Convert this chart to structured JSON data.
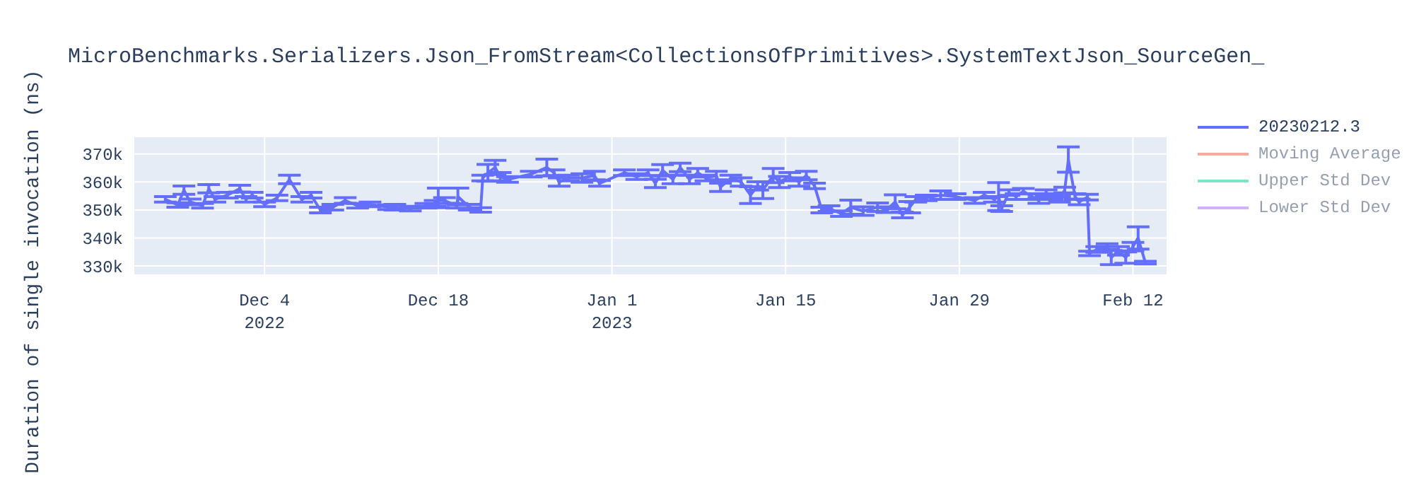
{
  "chart_data": {
    "type": "line",
    "title": "MicroBenchmarks.Serializers.Json_FromStream<CollectionsOfPrimitives>.SystemTextJson_SourceGen_",
    "ylabel": "Duration of single invocation (ns)",
    "x": [
      "2022-11-26",
      "2022-11-27",
      "2022-11-27T12:00",
      "2022-11-28",
      "2022-11-29",
      "2022-11-29T12:00",
      "2022-11-30",
      "2022-12-01",
      "2022-12-02",
      "2022-12-02T12:00",
      "2022-12-03",
      "2022-12-04",
      "2022-12-05",
      "2022-12-06",
      "2022-12-07",
      "2022-12-07T18:00",
      "2022-12-08T12:00",
      "2022-12-09T12:00",
      "2022-12-10T12:00",
      "2022-12-11T12:00",
      "2022-12-12T12:00",
      "2022-12-14",
      "2022-12-14T12:00",
      "2022-12-15T18:00",
      "2022-12-17",
      "2022-12-17T18:00",
      "2022-12-18",
      "2022-12-18T12:00",
      "2022-12-19T12:00",
      "2022-12-19T14:00",
      "2022-12-20T12:00",
      "2022-12-21T10:00",
      "2022-12-21T14:00",
      "2022-12-22",
      "2022-12-22T14:00",
      "2022-12-23",
      "2022-12-23T14:00",
      "2022-12-25T12:00",
      "2022-12-26T18:00",
      "2022-12-27T08:00",
      "2022-12-27T18:00",
      "2022-12-28T12:00",
      "2022-12-29T14:00",
      "2022-12-30T14:00",
      "2022-12-31",
      "2023-01-02",
      "2023-01-03",
      "2023-01-03T22:00",
      "2023-01-04T12:00",
      "2023-01-05T02:00",
      "2023-01-05T22:00",
      "2023-01-06T12:00",
      "2023-01-07T06:00",
      "2023-01-07T22:00",
      "2023-01-08T14:00",
      "2023-01-09T10:00",
      "2023-01-09T18:00",
      "2023-01-10T14:00",
      "2023-01-11T10:00",
      "2023-01-12T04:00",
      "2023-01-12T18:00",
      "2023-01-13T04:00",
      "2023-01-14",
      "2023-01-14T12:00",
      "2023-01-15T08:00",
      "2023-01-16T02:00",
      "2023-01-16T16:00",
      "2023-01-17T08:00",
      "2023-01-17T22:00",
      "2023-01-18T12:00",
      "2023-01-19T12:00",
      "2023-01-20T06:00",
      "2023-01-21T06:00",
      "2023-01-22T10:00",
      "2023-01-23T04:00",
      "2023-01-23T20:00",
      "2023-01-24T10:00",
      "2023-01-25",
      "2023-01-25T12:00",
      "2023-01-26T08:00",
      "2023-01-27T12:00",
      "2023-01-28T16:00",
      "2023-01-30T06:00",
      "2023-01-31",
      "2023-01-31T20:00",
      "2023-02-01T04:00",
      "2023-02-01T10:00",
      "2023-02-02",
      "2023-02-02T14:00",
      "2023-02-03T04:00",
      "2023-02-03T20:00",
      "2023-02-04T10:00",
      "2023-02-05",
      "2023-02-05T12:00",
      "2023-02-06T02:00",
      "2023-02-06T12:00",
      "2023-02-06T19:00",
      "2023-02-07T08:00",
      "2023-02-07T16:00",
      "2023-02-08T08:00",
      "2023-02-08T12:00",
      "2023-02-09T02:00",
      "2023-02-09T22:00",
      "2023-02-10T06:00",
      "2023-02-10T20:00",
      "2023-02-11T10:00",
      "2023-02-12",
      "2023-02-12T10:00",
      "2023-02-13"
    ],
    "series": [
      {
        "name": "20230212.3",
        "color": "#636efa",
        "values": [
          353800,
          351800,
          357100,
          352900,
          351500,
          357600,
          353800,
          355300,
          357600,
          353800,
          355300,
          352000,
          354300,
          360900,
          353800,
          355300,
          350000,
          351000,
          353400,
          351500,
          352000,
          351000,
          351000,
          350500,
          351500,
          352400,
          354300,
          353400,
          351500,
          354800,
          351000,
          350000,
          361400,
          363300,
          365200,
          361900,
          360900,
          362800,
          365200,
          363300,
          360000,
          361400,
          361400,
          362300,
          359500,
          363300,
          361900,
          363300,
          359500,
          364200,
          360900,
          365200,
          360900,
          363300,
          361400,
          362300,
          358100,
          361400,
          360000,
          355300,
          358600,
          357100,
          362300,
          360000,
          361900,
          360000,
          362300,
          358600,
          350000,
          350500,
          348700,
          351000,
          349600,
          351000,
          350100,
          352900,
          348200,
          351000,
          353800,
          354300,
          355300,
          354800,
          353400,
          355300,
          353800,
          354800,
          350500,
          356200,
          354800,
          356700,
          354800,
          353400,
          356200,
          354800,
          353800,
          357100,
          368000,
          354800,
          352900,
          354600,
          334500,
          335900,
          336900,
          333000,
          335400,
          333000,
          336900,
          340000,
          331200
        ],
        "errors": [
          1000,
          800,
          1500,
          1000,
          800,
          1500,
          1000,
          1000,
          1200,
          1000,
          1000,
          800,
          1000,
          1500,
          1000,
          1000,
          1000,
          1000,
          1000,
          800,
          800,
          800,
          1000,
          800,
          800,
          1000,
          3500,
          1000,
          800,
          3000,
          1000,
          800,
          1000,
          3000,
          2500,
          1500,
          1000,
          1000,
          3000,
          1000,
          1500,
          1000,
          1500,
          1500,
          1000,
          1000,
          1000,
          1000,
          1500,
          2000,
          1500,
          1500,
          1500,
          1500,
          1000,
          1500,
          1500,
          1000,
          1500,
          3000,
          1500,
          3000,
          2500,
          2000,
          1500,
          1500,
          1500,
          1000,
          1000,
          1000,
          1000,
          2500,
          1500,
          1500,
          1000,
          2500,
          1000,
          2000,
          1000,
          1000,
          1500,
          1000,
          1000,
          1000,
          1000,
          5000,
          1000,
          1000,
          1000,
          1000,
          1000,
          1000,
          1000,
          1000,
          1000,
          1000,
          4500,
          1000,
          1000,
          1000,
          800,
          1000,
          1000,
          2500,
          1500,
          2000,
          1500,
          4000,
          500
        ]
      },
      {
        "name": "Moving Average",
        "color": "#f7aa9d",
        "values": [
          null,
          null,
          null,
          null,
          null,
          null,
          null,
          null,
          null,
          null,
          null,
          null,
          null,
          null,
          null,
          null,
          null,
          null,
          null,
          null,
          null,
          null,
          null,
          null,
          null,
          null,
          null,
          null,
          null,
          null,
          null,
          null,
          null,
          null,
          null,
          null,
          null,
          null,
          null,
          null,
          null,
          null,
          null,
          null,
          null,
          null,
          null,
          null,
          null,
          null,
          null,
          null,
          null,
          null,
          null,
          null,
          null,
          null,
          null,
          null,
          null,
          null,
          null,
          null,
          null,
          null,
          null,
          null,
          null,
          null,
          null,
          null,
          null,
          null,
          null,
          null,
          null,
          null,
          null,
          null,
          null,
          null,
          null,
          null,
          null,
          null,
          null,
          null,
          null,
          null,
          null,
          null,
          null,
          null,
          null,
          null,
          null,
          null,
          null,
          null,
          null,
          null,
          null,
          null,
          null,
          null,
          null,
          null,
          null
        ]
      },
      {
        "name": "Upper Std Dev",
        "color": "#80e6cb",
        "values": [
          null,
          null,
          null,
          null,
          null,
          null,
          null,
          null,
          null,
          null,
          null,
          null,
          null,
          null,
          null,
          null,
          null,
          null,
          null,
          null,
          null,
          null,
          null,
          null,
          null,
          null,
          null,
          null,
          null,
          null,
          null,
          null,
          null,
          null,
          null,
          null,
          null,
          null,
          null,
          null,
          null,
          null,
          null,
          null,
          null,
          null,
          null,
          null,
          null,
          null,
          null,
          null,
          null,
          null,
          null,
          null,
          null,
          null,
          null,
          null,
          null,
          null,
          null,
          null,
          null,
          null,
          null,
          null,
          null,
          null,
          null,
          null,
          null,
          null,
          null,
          null,
          null,
          null,
          null,
          null,
          null,
          null,
          null,
          null,
          null,
          null,
          null,
          null,
          null,
          null,
          null,
          null,
          null,
          null,
          null,
          null,
          null,
          null,
          null,
          null,
          null,
          null,
          null,
          null,
          null,
          null,
          null,
          null,
          null
        ]
      },
      {
        "name": "Lower Std Dev",
        "color": "#d5b1fd",
        "values": [
          null,
          null,
          null,
          null,
          null,
          null,
          null,
          null,
          null,
          null,
          null,
          null,
          null,
          null,
          null,
          null,
          null,
          null,
          null,
          null,
          null,
          null,
          null,
          null,
          null,
          null,
          null,
          null,
          null,
          null,
          null,
          null,
          null,
          null,
          null,
          null,
          null,
          null,
          null,
          null,
          null,
          null,
          null,
          null,
          null,
          null,
          null,
          null,
          null,
          null,
          null,
          null,
          null,
          null,
          null,
          null,
          null,
          null,
          null,
          null,
          null,
          null,
          null,
          null,
          null,
          null,
          null,
          null,
          null,
          null,
          null,
          null,
          null,
          null,
          null,
          null,
          null,
          null,
          null,
          null,
          null,
          null,
          null,
          null,
          null,
          null,
          null,
          null,
          null,
          null,
          null,
          null,
          null,
          null,
          null,
          null,
          null,
          null,
          null,
          null,
          null,
          null,
          null,
          null,
          null,
          null,
          null,
          null,
          null
        ]
      }
    ],
    "xlim": [
      "2022-11-23T12:00",
      "2023-02-14T17:00"
    ],
    "xticks": [
      {
        "value": "2022-12-04",
        "label": "Dec 4\n2022"
      },
      {
        "value": "2022-12-18",
        "label": "Dec 18"
      },
      {
        "value": "2023-01-01",
        "label": "Jan 1\n2023"
      },
      {
        "value": "2023-01-15",
        "label": "Jan 15"
      },
      {
        "value": "2023-01-29",
        "label": "Jan 29"
      },
      {
        "value": "2023-02-12",
        "label": "Feb 12"
      }
    ],
    "ylim": [
      327000,
      376000
    ],
    "yticks": [
      {
        "value": 330000,
        "label": "330k"
      },
      {
        "value": 340000,
        "label": "340k"
      },
      {
        "value": 350000,
        "label": "350k"
      },
      {
        "value": 360000,
        "label": "360k"
      },
      {
        "value": 370000,
        "label": "370k"
      }
    ],
    "grid": true,
    "legend": "top right",
    "marker": "none",
    "line_style": "solid"
  }
}
